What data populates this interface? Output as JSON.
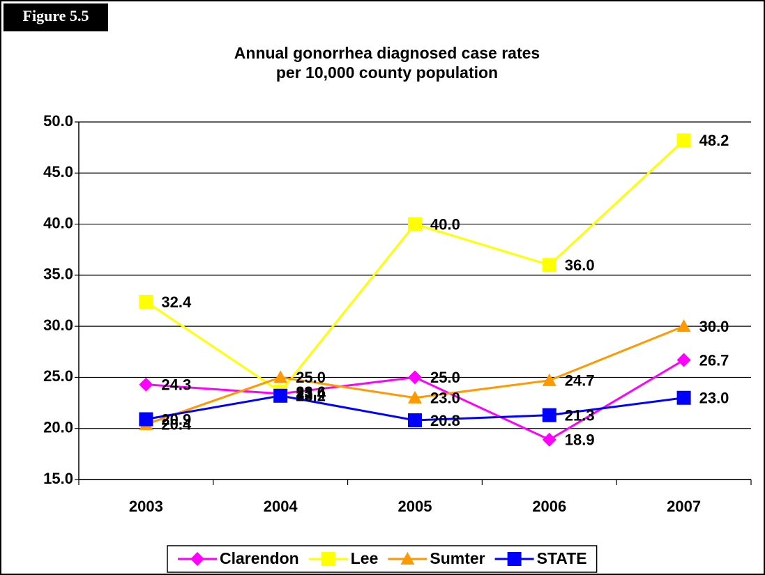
{
  "figure_label": "Figure 5.5",
  "chart_data": {
    "type": "line",
    "title": [
      "Annual gonorrhea diagnosed case rates",
      "per 10,000 county population"
    ],
    "categories": [
      "2003",
      "2004",
      "2005",
      "2006",
      "2007"
    ],
    "series": [
      {
        "name": "Clarendon",
        "color": "#ff00ff",
        "marker": "diamond",
        "values": [
          24.3,
          23.4,
          25,
          18.9,
          26.7
        ],
        "value_labels": [
          "24.3",
          "23.4",
          "25.0",
          "18.9",
          "26.7"
        ]
      },
      {
        "name": "Lee",
        "color": "#ffff00",
        "marker": "square",
        "values": [
          32.4,
          23.6,
          40,
          36,
          48.2
        ],
        "value_labels": [
          "32.4",
          "23.6",
          "40.0",
          "36.0",
          "48.2"
        ]
      },
      {
        "name": "Sumter",
        "color": "#ff9900",
        "marker": "triangle",
        "values": [
          20.4,
          25,
          23,
          24.7,
          30
        ],
        "value_labels": [
          "20.4",
          "25.0",
          "23.0",
          "24.7",
          "30.0"
        ]
      },
      {
        "name": "STATE",
        "color": "#0000ff",
        "marker": "square",
        "values": [
          20.9,
          23.2,
          20.8,
          21.3,
          23
        ],
        "value_labels": [
          "20.9",
          "23.2",
          "20.8",
          "21.3",
          "23.0"
        ]
      }
    ],
    "ylim": [
      15,
      50
    ],
    "yticks": [
      {
        "value": 15,
        "label": "15.0"
      },
      {
        "value": 20,
        "label": "20.0"
      },
      {
        "value": 25,
        "label": "25.0"
      },
      {
        "value": 30,
        "label": "30.0"
      },
      {
        "value": 35,
        "label": "35.0"
      },
      {
        "value": 40,
        "label": "40.0"
      },
      {
        "value": 45,
        "label": "45.0"
      },
      {
        "value": 50,
        "label": "50.0"
      }
    ],
    "grid": true,
    "legend": "bottom"
  }
}
